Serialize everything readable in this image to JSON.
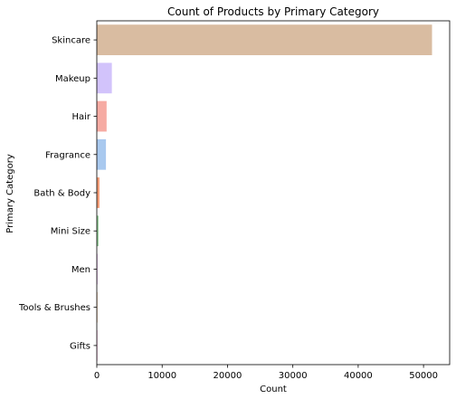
{
  "chart_data": {
    "type": "bar",
    "orientation": "horizontal",
    "title": "Count of Products by Primary Category",
    "xlabel": "Count",
    "ylabel": "Primary Category",
    "xlim": [
      0,
      54000
    ],
    "xticks": [
      0,
      10000,
      20000,
      30000,
      40000,
      50000
    ],
    "grid": false,
    "categories": [
      "Skincare",
      "Makeup",
      "Hair",
      "Fragrance",
      "Bath & Body",
      "Mini Size",
      "Men",
      "Tools & Brushes",
      "Gifts"
    ],
    "values": [
      51300,
      2300,
      1500,
      1400,
      400,
      250,
      60,
      40,
      20
    ],
    "colors": [
      "#d9bca1",
      "#d2c3fb",
      "#f6aba3",
      "#a9c9ef",
      "#f59c75",
      "#8cc891",
      "#d7a6e0",
      "#e3c2a0",
      "#f2b9dc"
    ]
  }
}
